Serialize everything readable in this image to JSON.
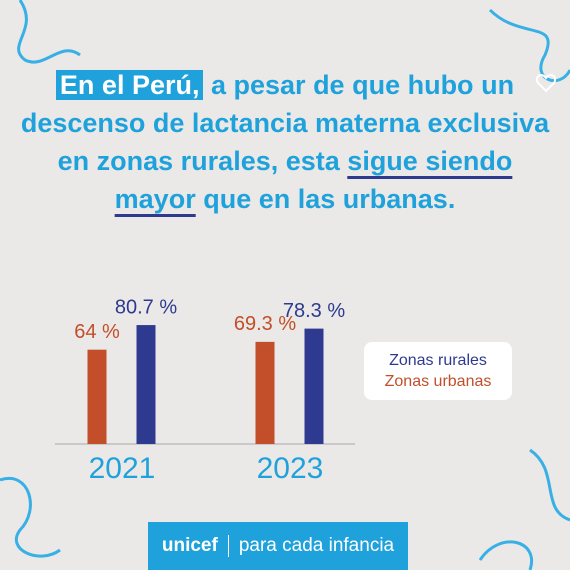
{
  "headline": [
    "En el Perú,",
    "a pesar de que hubo",
    "un descenso de lactancia materna",
    "exclusiva en zonas rurales, esta",
    "sigue siendo mayor",
    "que en las",
    "urbanas."
  ],
  "chart_data": {
    "type": "bar",
    "categories": [
      "2021",
      "2023"
    ],
    "series": [
      {
        "name": "Zonas urbanas",
        "color": "#c24f2a",
        "values": [
          64,
          69.3
        ],
        "value_labels": [
          "64 %",
          "69.3 %"
        ]
      },
      {
        "name": "Zonas rurales",
        "color": "#2d3a8f",
        "values": [
          80.7,
          78.3
        ],
        "value_labels": [
          "80.7 %",
          "78.3 %"
        ]
      }
    ],
    "ylim": [
      0,
      95
    ]
  },
  "footer": {
    "brand": "unicef",
    "tagline": "para cada infancia"
  }
}
